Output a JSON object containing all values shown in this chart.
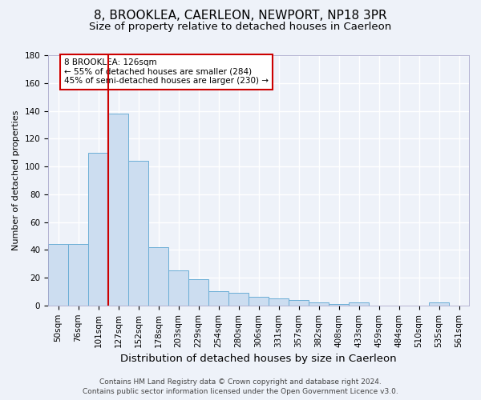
{
  "title": "8, BROOKLEA, CAERLEON, NEWPORT, NP18 3PR",
  "subtitle": "Size of property relative to detached houses in Caerleon",
  "xlabel": "Distribution of detached houses by size in Caerleon",
  "ylabel": "Number of detached properties",
  "footer_line1": "Contains HM Land Registry data © Crown copyright and database right 2024.",
  "footer_line2": "Contains public sector information licensed under the Open Government Licence v3.0.",
  "bar_labels": [
    "50sqm",
    "76sqm",
    "101sqm",
    "127sqm",
    "152sqm",
    "178sqm",
    "203sqm",
    "229sqm",
    "254sqm",
    "280sqm",
    "306sqm",
    "331sqm",
    "357sqm",
    "382sqm",
    "408sqm",
    "433sqm",
    "459sqm",
    "484sqm",
    "510sqm",
    "535sqm",
    "561sqm"
  ],
  "bar_values": [
    44,
    44,
    110,
    138,
    104,
    42,
    25,
    19,
    10,
    9,
    6,
    5,
    4,
    2,
    1,
    2,
    0,
    0,
    0,
    2,
    0
  ],
  "bar_color": "#ccddf0",
  "bar_edge_color": "#6baed6",
  "annotation_text": "8 BROOKLEA: 126sqm\n← 55% of detached houses are smaller (284)\n45% of semi-detached houses are larger (230) →",
  "annotation_box_color": "white",
  "annotation_box_edge_color": "#cc0000",
  "vline_x": 2.5,
  "vline_color": "#cc0000",
  "ylim": [
    0,
    180
  ],
  "yticks": [
    0,
    20,
    40,
    60,
    80,
    100,
    120,
    140,
    160,
    180
  ],
  "background_color": "#eef2f9",
  "grid_color": "white",
  "title_fontsize": 11,
  "subtitle_fontsize": 9.5,
  "ylabel_fontsize": 8,
  "xlabel_fontsize": 9.5,
  "tick_fontsize": 7.5,
  "footer_fontsize": 6.5,
  "annot_fontsize": 7.5
}
